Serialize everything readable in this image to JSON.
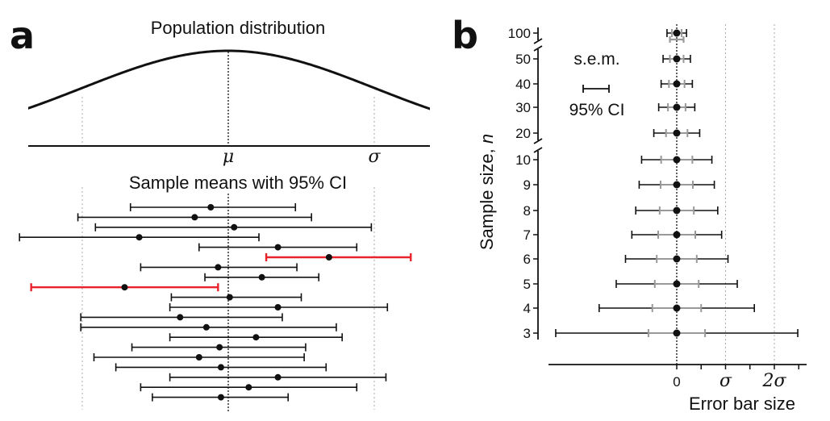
{
  "colors": {
    "ci": "#111111",
    "sem": "#999999",
    "miss": "#e8232c",
    "guide": "#aaaaaa"
  },
  "panel_a": {
    "letter": "a",
    "title": "Population distribution",
    "mu_label": "μ",
    "sigma_label": "σ",
    "subtitle": "Sample means with 95% CI"
  },
  "panel_b": {
    "letter": "b",
    "ylabel_main": "Sample size, ",
    "ylabel_var": "n",
    "xlabel": "Error bar size",
    "legend_sem": "s.e.m.",
    "legend_ci": "95% CI",
    "xticks": [
      "0",
      "σ",
      "2σ"
    ],
    "yticks": [
      "100",
      "50",
      "40",
      "30",
      "20",
      "10",
      "9",
      "8",
      "7",
      "6",
      "5",
      "4",
      "3"
    ]
  },
  "chart_data": [
    {
      "type": "scatter",
      "title": "Population distribution",
      "subtitle": "Sample means with 95% CI",
      "x_unit": "σ",
      "population": {
        "mean": 0,
        "sd": 1
      },
      "series": [
        {
          "values": [
            {
              "mean": -0.12,
              "lo": -0.67,
              "hi": 0.46
            },
            {
              "mean": -0.23,
              "lo": -1.03,
              "hi": 0.57
            },
            {
              "mean": 0.04,
              "lo": -0.91,
              "hi": 0.98
            },
            {
              "mean": -0.61,
              "lo": -1.43,
              "hi": 0.21
            },
            {
              "mean": 0.34,
              "lo": -0.2,
              "hi": 0.88
            },
            {
              "mean": 0.69,
              "lo": 0.26,
              "hi": 1.25,
              "missed": true
            },
            {
              "mean": -0.07,
              "lo": -0.6,
              "hi": 0.47
            },
            {
              "mean": 0.23,
              "lo": -0.16,
              "hi": 0.62
            },
            {
              "mean": -0.71,
              "lo": -1.35,
              "hi": -0.07,
              "missed": true
            },
            {
              "mean": 0.01,
              "lo": -0.39,
              "hi": 0.5
            },
            {
              "mean": 0.34,
              "lo": -0.4,
              "hi": 1.09
            },
            {
              "mean": -0.33,
              "lo": -1.01,
              "hi": 0.37
            },
            {
              "mean": -0.15,
              "lo": -1.01,
              "hi": 0.74
            },
            {
              "mean": 0.19,
              "lo": -0.4,
              "hi": 0.78
            },
            {
              "mean": -0.06,
              "lo": -0.66,
              "hi": 0.53
            },
            {
              "mean": -0.2,
              "lo": -0.92,
              "hi": 0.52
            },
            {
              "mean": -0.05,
              "lo": -0.77,
              "hi": 0.67
            },
            {
              "mean": 0.34,
              "lo": -0.4,
              "hi": 1.08
            },
            {
              "mean": 0.14,
              "lo": -0.6,
              "hi": 0.88
            },
            {
              "mean": -0.05,
              "lo": -0.52,
              "hi": 0.41
            }
          ]
        }
      ]
    },
    {
      "type": "scatter",
      "xlabel": "Error bar size",
      "ylabel": "Sample size, n",
      "legend": [
        "s.e.m.",
        "95% CI"
      ],
      "xticks": [
        "0",
        "σ",
        "2σ"
      ],
      "n": [
        3,
        4,
        5,
        6,
        7,
        8,
        9,
        10,
        20,
        30,
        40,
        50,
        100
      ],
      "series": [
        {
          "name": "s.e.m.",
          "values": [
            0.58,
            0.5,
            0.45,
            0.41,
            0.38,
            0.35,
            0.33,
            0.32,
            0.22,
            0.18,
            0.16,
            0.14,
            0.1
          ]
        },
        {
          "name": "95% CI",
          "values": [
            2.48,
            1.59,
            1.24,
            1.05,
            0.92,
            0.84,
            0.77,
            0.72,
            0.47,
            0.37,
            0.32,
            0.28,
            0.2
          ]
        }
      ]
    }
  ]
}
